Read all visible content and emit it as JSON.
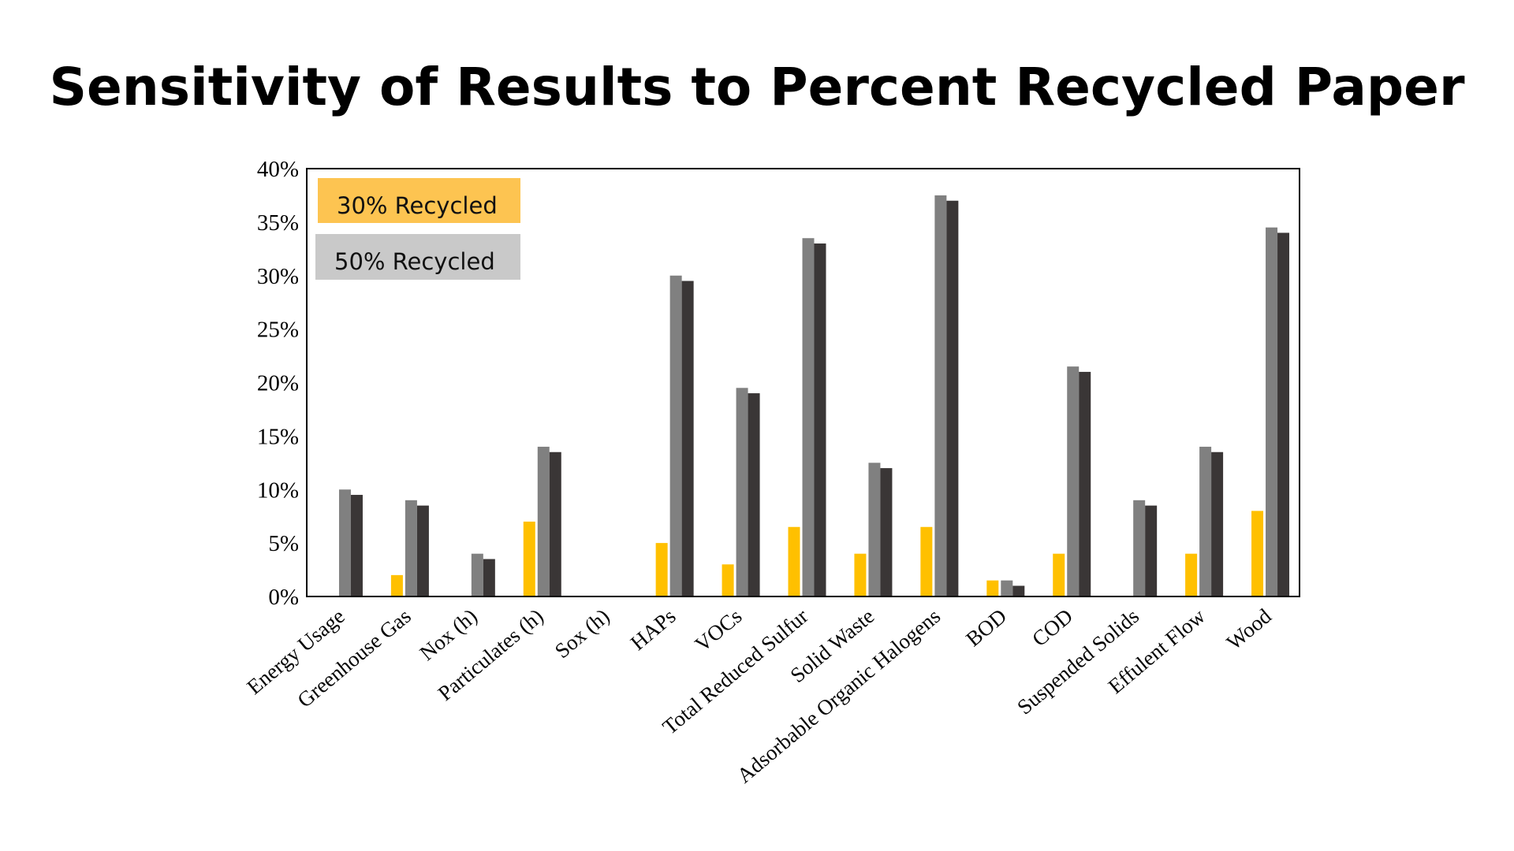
{
  "page": {
    "title": "Sensitivity of Results to Percent Recycled Paper"
  },
  "legend": [
    {
      "label": "30% Recycled",
      "color": "#FDC451"
    },
    {
      "label": "50% Recycled",
      "color": "#C9C9C9"
    }
  ],
  "chart_data": {
    "type": "bar",
    "title": "Sensitivity of Results to Percent Recycled Paper",
    "xlabel": "",
    "ylabel": "",
    "ylim": [
      0,
      40
    ],
    "yticks": [
      "0%",
      "5%",
      "10%",
      "15%",
      "20%",
      "25%",
      "30%",
      "35%",
      "40%"
    ],
    "grid": false,
    "legend_position": "top-left",
    "categories": [
      "Energy Usage",
      "Greenhouse Gas",
      "Nox (h)",
      "Particulates (h)",
      "Sox (h)",
      "HAPs",
      "VOCs",
      "Total Reduced Sulfur",
      "Solid Waste",
      "Adsorbable Organic Halogens",
      "BOD",
      "COD",
      "Suspended Solids",
      "Effulent Flow",
      "Wood"
    ],
    "series": [
      {
        "color": "#FFC000",
        "values": [
          0,
          2,
          0,
          7,
          0,
          5,
          3,
          6.5,
          4,
          6.5,
          1.5,
          4,
          0,
          4,
          8
        ]
      },
      {
        "color": "#808080",
        "values": [
          10,
          9,
          4,
          14,
          0,
          30,
          19.5,
          33.5,
          12.5,
          37.5,
          1.5,
          21.5,
          9,
          14,
          34.5
        ]
      },
      {
        "color": "#3A3636",
        "values": [
          9.5,
          8.5,
          3.5,
          13.5,
          0,
          29.5,
          19,
          33,
          12,
          37,
          1,
          21,
          8.5,
          13.5,
          34
        ]
      }
    ]
  }
}
